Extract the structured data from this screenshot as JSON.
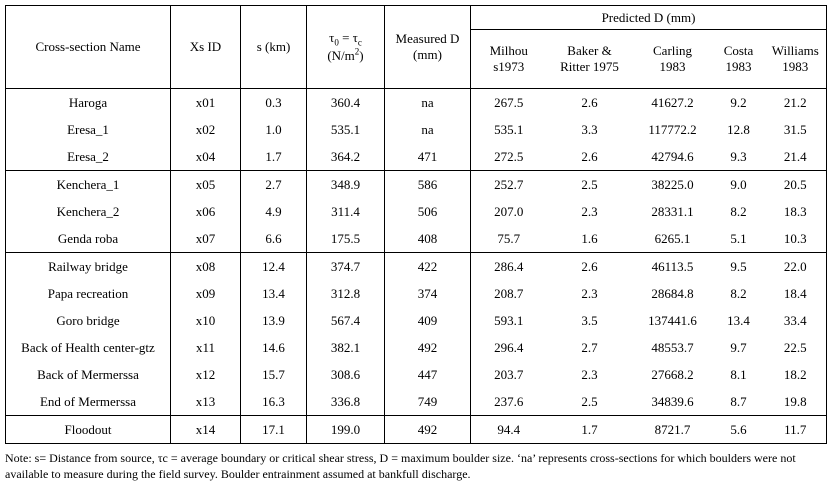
{
  "table": {
    "headers": {
      "name": "Cross-section Name",
      "xs_id": "Xs ID",
      "s_km": "s (km)",
      "tau": {
        "t1": "τ",
        "s1": "0",
        "t2": " = τ",
        "s2": "c"
      },
      "tau_unit": {
        "u1": "(N/m",
        "sup": "2",
        "u2": ")"
      },
      "measured": {
        "l1": "Measured D",
        "l2": "(mm)"
      },
      "predicted_group": "Predicted D (mm)",
      "predicted": [
        {
          "l1": "Milhou",
          "l2": "s1973"
        },
        {
          "l1": "Baker &",
          "l2": "Ritter 1975"
        },
        {
          "l1": "Carling",
          "l2": "1983"
        },
        {
          "l1": "Costa",
          "l2": "1983"
        },
        {
          "l1": "Williams",
          "l2": "1983"
        }
      ]
    },
    "groups": [
      {
        "rows": [
          [
            "Haroga",
            "x01",
            "0.3",
            "360.4",
            "na",
            "267.5",
            "2.6",
            "41627.2",
            "9.2",
            "21.2"
          ],
          [
            "Eresa_1",
            "x02",
            "1.0",
            "535.1",
            "na",
            "535.1",
            "3.3",
            "117772.2",
            "12.8",
            "31.5"
          ],
          [
            "Eresa_2",
            "x04",
            "1.7",
            "364.2",
            "471",
            "272.5",
            "2.6",
            "42794.6",
            "9.3",
            "21.4"
          ]
        ]
      },
      {
        "rows": [
          [
            "Kenchera_1",
            "x05",
            "2.7",
            "348.9",
            "586",
            "252.7",
            "2.5",
            "38225.0",
            "9.0",
            "20.5"
          ],
          [
            "Kenchera_2",
            "x06",
            "4.9",
            "311.4",
            "506",
            "207.0",
            "2.3",
            "28331.1",
            "8.2",
            "18.3"
          ],
          [
            "Genda roba",
            "x07",
            "6.6",
            "175.5",
            "408",
            "75.7",
            "1.6",
            "6265.1",
            "5.1",
            "10.3"
          ]
        ]
      },
      {
        "rows": [
          [
            "Railway bridge",
            "x08",
            "12.4",
            "374.7",
            "422",
            "286.4",
            "2.6",
            "46113.5",
            "9.5",
            "22.0"
          ],
          [
            "Papa recreation",
            "x09",
            "13.4",
            "312.8",
            "374",
            "208.7",
            "2.3",
            "28684.8",
            "8.2",
            "18.4"
          ],
          [
            "Goro bridge",
            "x10",
            "13.9",
            "567.4",
            "409",
            "593.1",
            "3.5",
            "137441.6",
            "13.4",
            "33.4"
          ],
          [
            "Back of Health center-gtz",
            "x11",
            "14.6",
            "382.1",
            "492",
            "296.4",
            "2.7",
            "48553.7",
            "9.7",
            "22.5"
          ],
          [
            "Back of Mermerssa",
            "x12",
            "15.7",
            "308.6",
            "447",
            "203.7",
            "2.3",
            "27668.2",
            "8.1",
            "18.2"
          ],
          [
            "End of Mermerssa",
            "x13",
            "16.3",
            "336.8",
            "749",
            "237.6",
            "2.5",
            "34839.6",
            "8.7",
            "19.8"
          ]
        ]
      },
      {
        "rows": [
          [
            "Floodout",
            "x14",
            "17.1",
            "199.0",
            "492",
            "94.4",
            "1.7",
            "8721.7",
            "5.6",
            "11.7"
          ]
        ]
      }
    ]
  },
  "note": "Note: s= Distance from source, τc = average boundary or critical shear stress, D = maximum boulder size.  ‘na’ represents cross-sections for which boulders were not available to measure during the field survey. Boulder entrainment assumed at bankfull discharge."
}
